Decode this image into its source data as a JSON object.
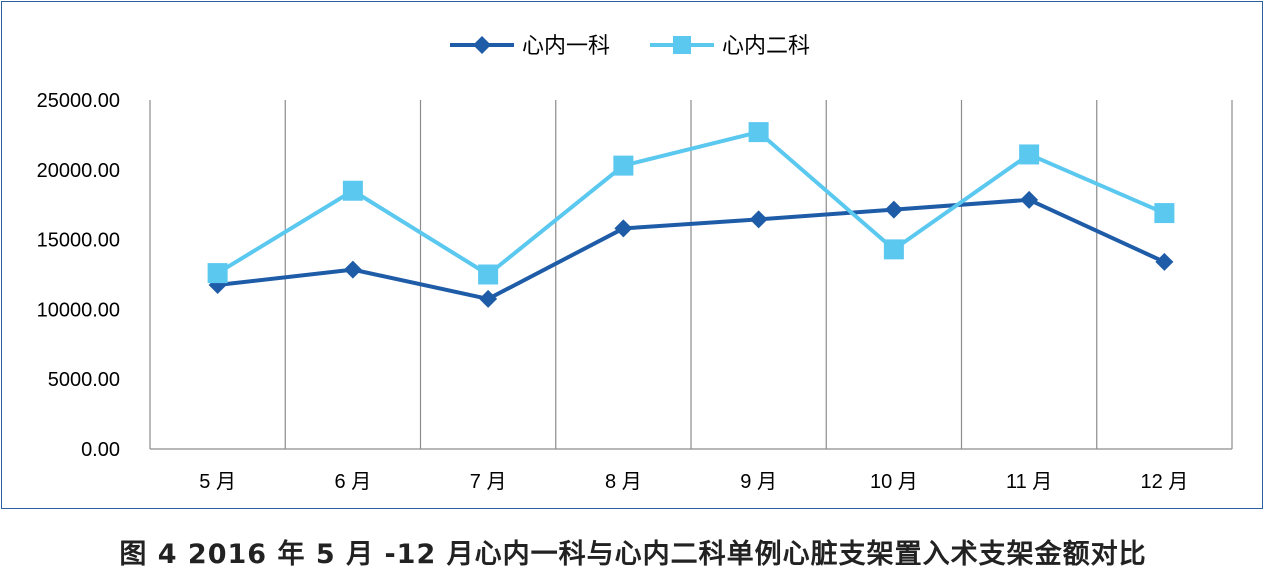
{
  "chart_data": {
    "type": "line",
    "title": "",
    "xlabel": "",
    "ylabel": "",
    "categories": [
      "5 月",
      "6 月",
      "7 月",
      "8 月",
      "9 月",
      "10 月",
      "11 月",
      "12 月"
    ],
    "series": [
      {
        "name": "心内一科",
        "color": "#1f5ca8",
        "marker": "diamond",
        "values": [
          11750,
          12850,
          10750,
          15800,
          16450,
          17150,
          17850,
          13400
        ]
      },
      {
        "name": "心内二科",
        "color": "#5bc8ef",
        "marker": "square",
        "values": [
          12600,
          18500,
          12500,
          20300,
          22700,
          14300,
          21100,
          16900
        ]
      }
    ],
    "ylim": [
      0,
      25000
    ],
    "yticks": [
      "0.00",
      "5000.00",
      "10000.00",
      "15000.00",
      "20000.00",
      "25000.00"
    ],
    "grid": "vertical",
    "legend_position": "top-center"
  },
  "caption": "图 4  2016 年 5 月 -12 月心内一科与心内二科单例心脏支架置入术支架金额对比"
}
